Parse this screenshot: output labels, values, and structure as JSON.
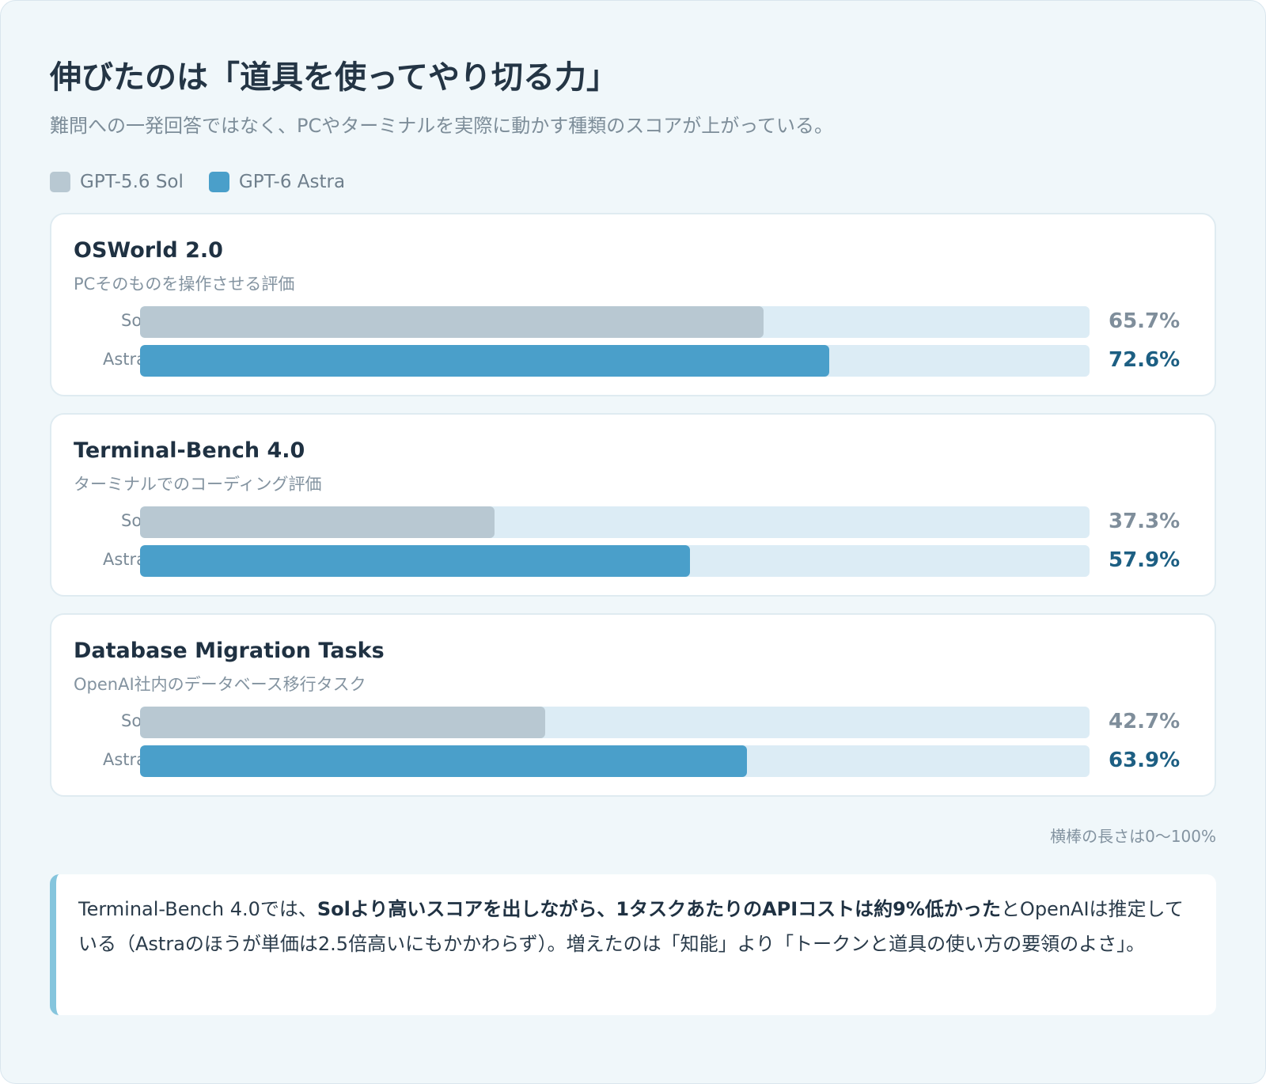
{
  "title": "伸びたのは「道具を使ってやり切る力」",
  "subtitle": "難問への一発回答ではなく、PCやターミナルを実際に動かす種類のスコアが上がっている。",
  "colors": {
    "sol": "#b8c8d2",
    "astra": "#4a9fca",
    "track": "#dcecf5"
  },
  "legend": [
    {
      "label": "GPT-5.6 Sol",
      "color": "#b8c8d2"
    },
    {
      "label": "GPT-6 Astra",
      "color": "#4a9fca"
    }
  ],
  "chart_data": {
    "type": "bar",
    "orientation": "horizontal",
    "xlim": [
      0,
      100
    ],
    "unit": "%",
    "series_names": [
      "Sol",
      "Astra"
    ],
    "groups": [
      {
        "title": "OSWorld 2.0",
        "subtitle": "PCそのものを操作させる評価",
        "bars": [
          {
            "label": "Sol",
            "value": 65.7,
            "display": "65.7%"
          },
          {
            "label": "Astra",
            "value": 72.6,
            "display": "72.6%"
          }
        ]
      },
      {
        "title": "Terminal-Bench 4.0",
        "subtitle": "ターミナルでのコーディング評価",
        "bars": [
          {
            "label": "Sol",
            "value": 37.3,
            "display": "37.3%"
          },
          {
            "label": "Astra",
            "value": 57.9,
            "display": "57.9%"
          }
        ]
      },
      {
        "title": "Database Migration Tasks",
        "subtitle": "OpenAI社内のデータベース移行タスク",
        "bars": [
          {
            "label": "Sol",
            "value": 42.7,
            "display": "42.7%"
          },
          {
            "label": "Astra",
            "value": 63.9,
            "display": "63.9%"
          }
        ]
      }
    ]
  },
  "note": "横棒の長さは0〜100%",
  "callout": {
    "part1": "Terminal-Bench 4.0では、",
    "bold": "Solより高いスコアを出しながら、1タスクあたりのAPIコストは約9%低かった",
    "part2": "とOpenAIは推定している（Astraのほうが単価は2.5倍高いにもかかわらず）。増えたのは「知能」より「トークンと道具の使い方の要領のよさ」。"
  }
}
